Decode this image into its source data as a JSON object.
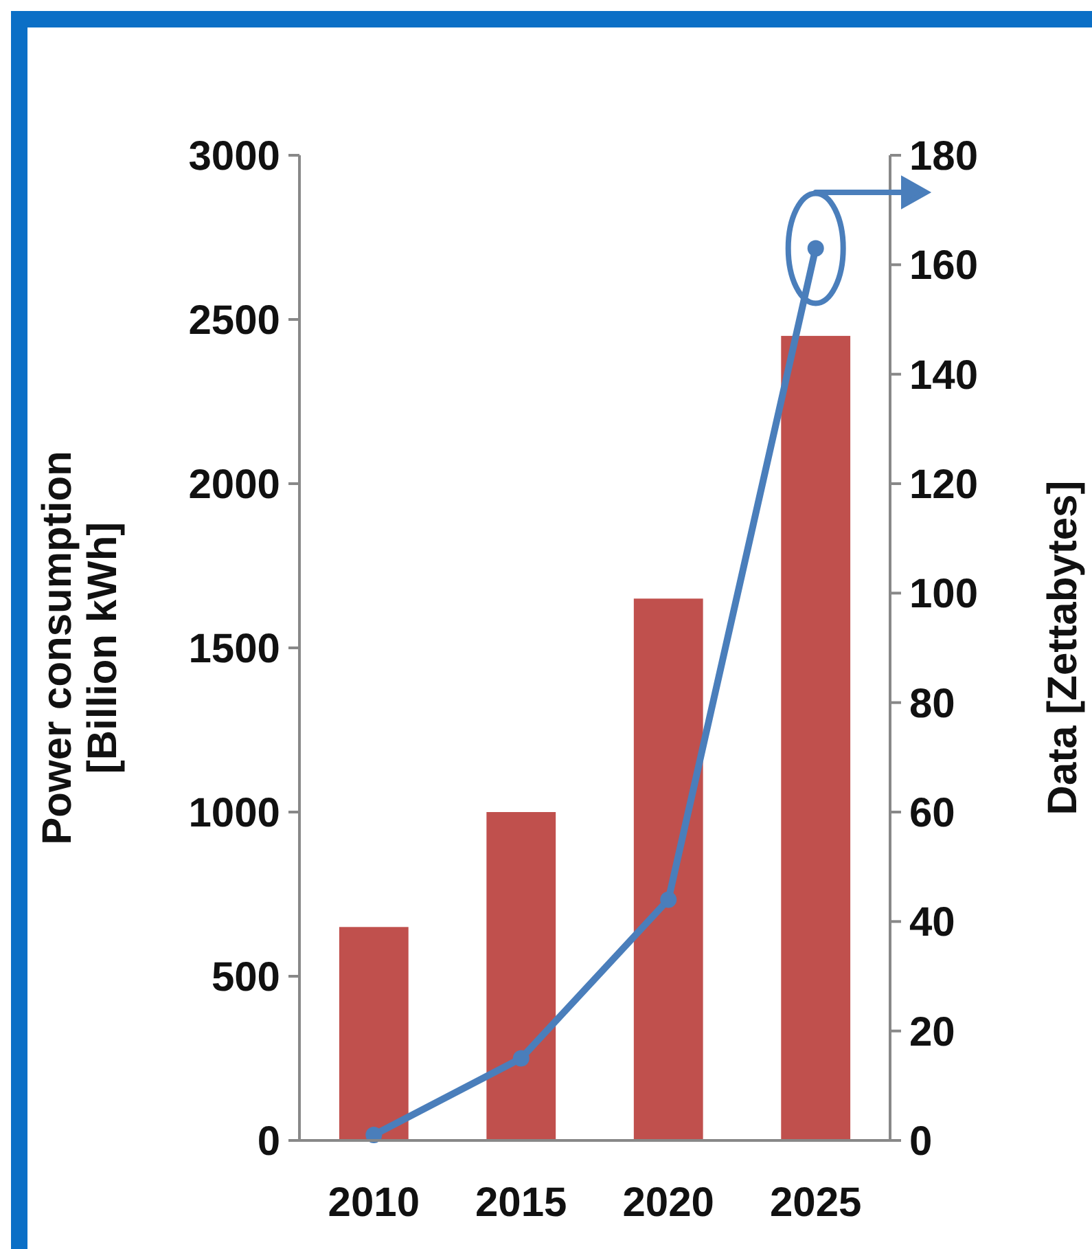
{
  "chart_data": {
    "type": "bar",
    "categories": [
      "2010",
      "2015",
      "2020",
      "2025"
    ],
    "ylabel": "Power consumption\n[Billion kWh]",
    "y2label": "Data [Zettabytes]",
    "ylim": [
      0,
      3000
    ],
    "yticks": [
      0,
      500,
      1000,
      1500,
      2000,
      2500,
      3000
    ],
    "y2lim": [
      0,
      180
    ],
    "y2ticks": [
      0,
      20,
      40,
      60,
      80,
      100,
      120,
      140,
      160,
      180
    ],
    "series": [
      {
        "color": "#c0504d",
        "values": [
          650,
          1000,
          1650,
          2450
        ]
      },
      {
        "type": "line",
        "axis": "y2",
        "color": "#4a7ebb",
        "values": [
          1,
          15,
          44,
          163
        ],
        "marker": "circle",
        "line_style": "solid"
      }
    ],
    "grid": false
  }
}
